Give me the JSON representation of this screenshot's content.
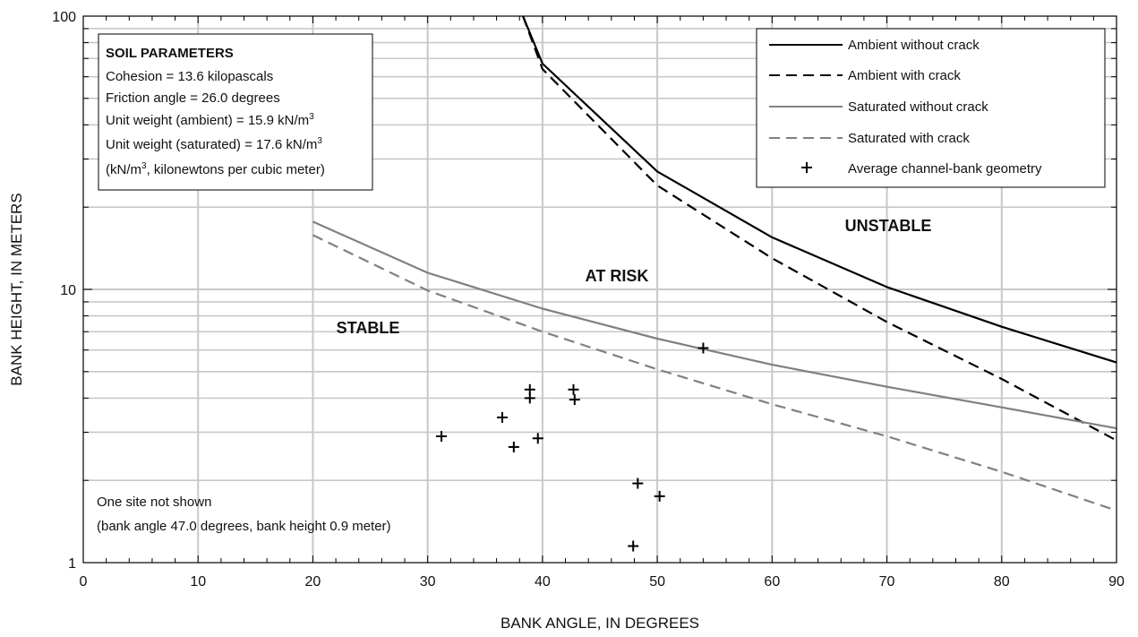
{
  "chart_data": {
    "type": "line",
    "xlabel": "BANK ANGLE, IN DEGREES",
    "ylabel": "BANK HEIGHT, IN METERS",
    "xlim": [
      0,
      90
    ],
    "ylim": [
      1,
      100
    ],
    "yscale": "log",
    "xticks": [
      "0",
      "10",
      "20",
      "30",
      "40",
      "50",
      "60",
      "70",
      "80",
      "90"
    ],
    "yticks": [
      "1",
      "10",
      "100"
    ],
    "grid": true,
    "series": [
      {
        "name": "Ambient without crack",
        "color": "#000000",
        "style": "solid",
        "x": [
          38.3,
          40,
          50,
          60,
          70,
          80,
          90
        ],
        "y": [
          100,
          67,
          27,
          15.5,
          10.2,
          7.3,
          5.4
        ]
      },
      {
        "name": "Ambient with crack",
        "color": "#000000",
        "style": "dashed",
        "x": [
          38.3,
          40,
          50,
          60,
          70,
          80,
          90
        ],
        "y": [
          100,
          64,
          24,
          13,
          7.6,
          4.7,
          2.8
        ]
      },
      {
        "name": "Saturated without crack",
        "color": "#808080",
        "style": "solid",
        "x": [
          20,
          30,
          40,
          50,
          60,
          70,
          80,
          90
        ],
        "y": [
          17.7,
          11.5,
          8.5,
          6.6,
          5.3,
          4.4,
          3.7,
          3.1
        ]
      },
      {
        "name": "Saturated with crack",
        "color": "#808080",
        "style": "dashed",
        "x": [
          20,
          30,
          40,
          50,
          60,
          70,
          80,
          90
        ],
        "y": [
          15.8,
          9.9,
          7.0,
          5.1,
          3.8,
          2.9,
          2.15,
          1.55
        ]
      }
    ],
    "points": {
      "name": "Average channel-bank geometry",
      "x": [
        31.2,
        36.5,
        37.5,
        38.9,
        38.9,
        39.6,
        42.7,
        42.8,
        47.9,
        48.3,
        50.2,
        54.0
      ],
      "y": [
        2.9,
        3.4,
        2.65,
        4.3,
        4.0,
        2.85,
        4.3,
        3.95,
        1.15,
        1.95,
        1.75,
        6.1
      ]
    },
    "region_labels": [
      {
        "text": "UNSTABLE",
        "x": 72.5,
        "y": 19.6
      },
      {
        "text": "AT RISK",
        "x": 46.5,
        "y": 12.6
      },
      {
        "text": "STABLE",
        "x": 31.5,
        "y": 7.2
      }
    ],
    "legend_position": "top-right",
    "params_box": {
      "title": "SOIL PARAMETERS",
      "line1": "Cohesion = 13.6 kilopascals",
      "line2": "Friction angle = 26.0 degrees",
      "line3_pre": "Unit weight (ambient) = 15.9 kN/m",
      "line4_pre": "Unit weight (saturated) = 17.6 kN/m",
      "line5_pre": "(kN/m",
      "line5_post": ", kilonewtons per cubic meter)",
      "superscript": "3"
    },
    "note": {
      "line1": "One site not shown",
      "line2": "(bank angle 47.0 degrees, bank height 0.9 meter)"
    }
  }
}
